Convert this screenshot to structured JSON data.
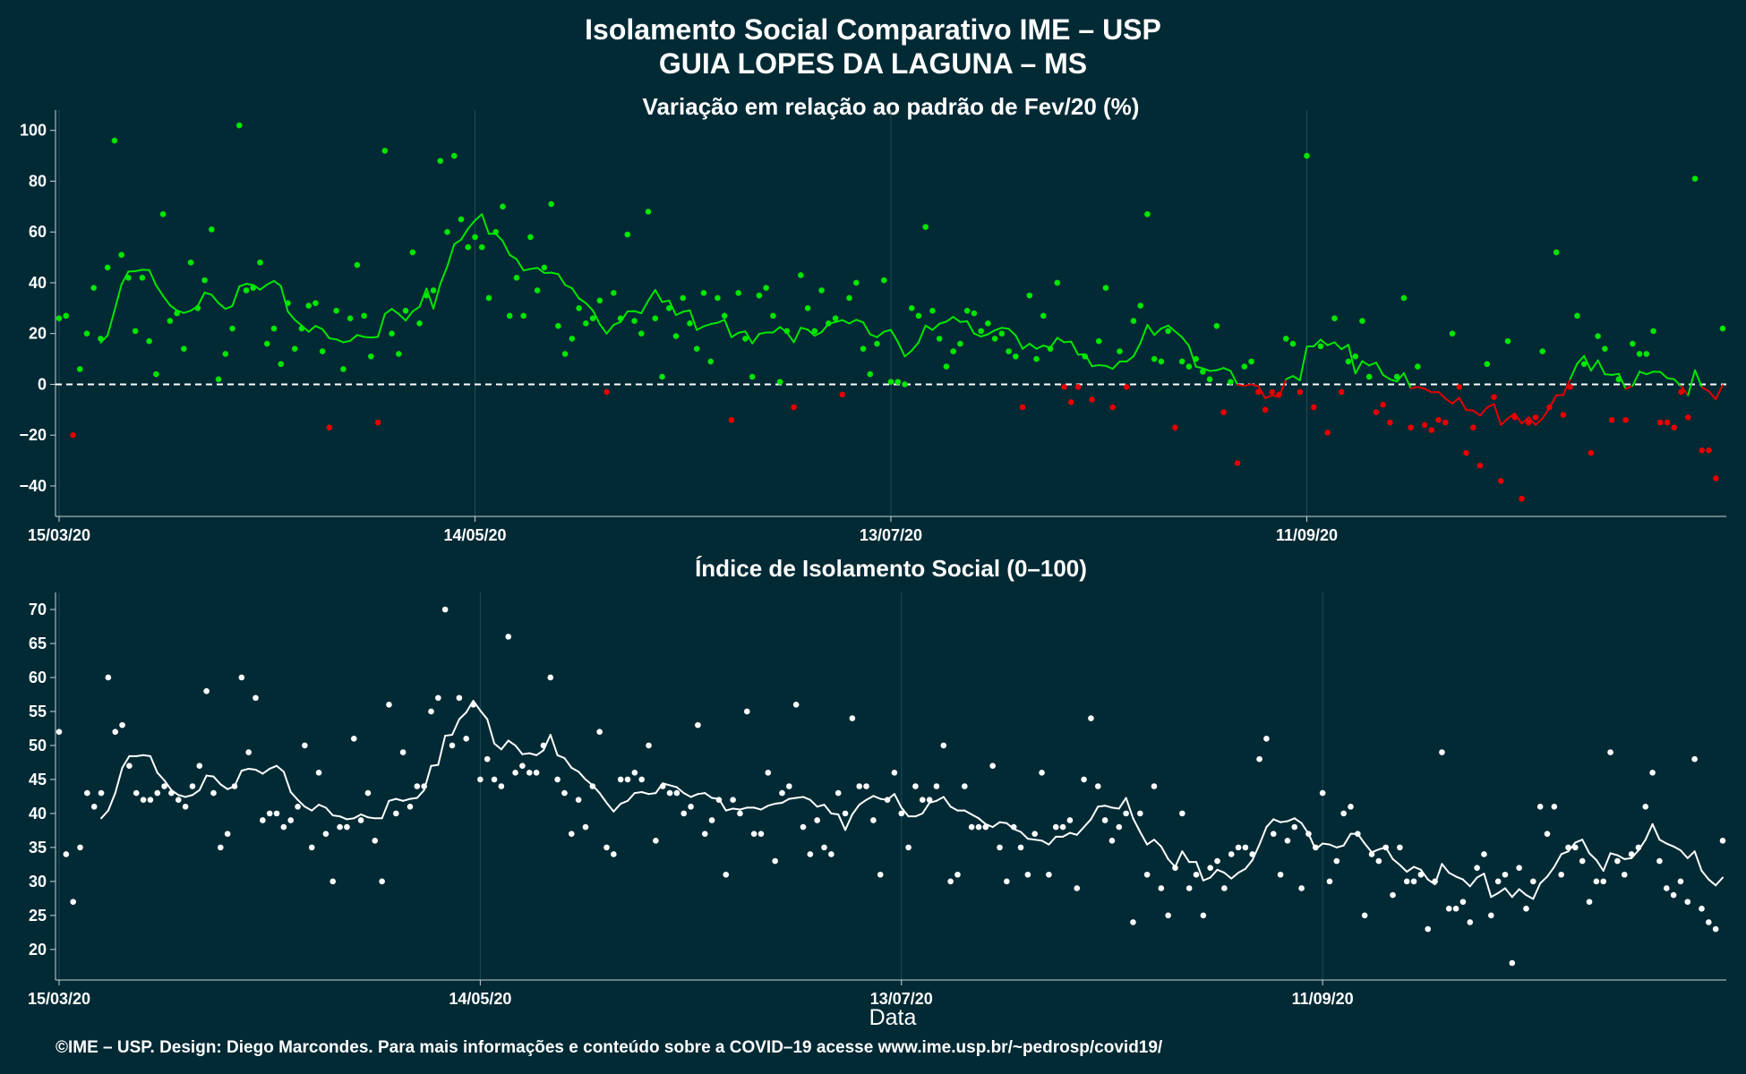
{
  "title_line1": "Isolamento Social Comparativo IME – USP",
  "title_line2": "GUIA LOPES DA LAGUNA – MS",
  "xlabel": "Data",
  "footer": "©IME – USP. Design: Diego Marcondes. Para mais informações e conteúdo sobre a COVID–19 acesse www.ime.usp.br/~pedrosp/covid19/",
  "colors": {
    "background": "#022a35",
    "positive": "#00e600",
    "negative": "#e60000",
    "index": "#ffffff",
    "grid": "#1d4a55"
  },
  "chart_data": [
    {
      "type": "scatter",
      "title": "Variação em relação ao padrão de Fev/20 (%)",
      "x_start": "15/03/20",
      "x_end": "29/10/20",
      "x_ticks": [
        "15/03/20",
        "14/05/20",
        "13/07/20",
        "11/09/20"
      ],
      "y_ticks": [
        "100",
        "80",
        "60",
        "40",
        "20",
        "0",
        "−20",
        "−40"
      ],
      "ylim": [
        -52,
        108
      ],
      "reference_line": 0,
      "moving_average": "7-day",
      "series": [
        {
          "values": [
            26,
            27,
            -20,
            6,
            20,
            38,
            18,
            46,
            96,
            51,
            42,
            21,
            42,
            17,
            4,
            67,
            25,
            28,
            14,
            48,
            30,
            41,
            61,
            2,
            12,
            22,
            102,
            37,
            38,
            48,
            16,
            22,
            8,
            32,
            14,
            22,
            31,
            32,
            13,
            -17,
            29,
            6,
            26,
            47,
            27,
            11,
            -15,
            92,
            20,
            12,
            29,
            52,
            24,
            35,
            37,
            88,
            60,
            90,
            65,
            54,
            58,
            54,
            34,
            60,
            70,
            27,
            42,
            27,
            58,
            37,
            46,
            71,
            23,
            12,
            18,
            30,
            24,
            26,
            33,
            -3,
            36,
            26,
            59,
            25,
            20,
            68,
            26,
            3,
            30,
            19,
            34,
            24,
            14,
            36,
            9,
            34,
            27,
            -14,
            36,
            18,
            3,
            35,
            38,
            27,
            1,
            21,
            -9,
            43,
            30,
            21,
            37,
            24,
            26,
            -4,
            34,
            40,
            14,
            4,
            16,
            41,
            1,
            1,
            0,
            30,
            27,
            62,
            29,
            18,
            7,
            13,
            16,
            29,
            28,
            21,
            24,
            18,
            20,
            13,
            11,
            -9,
            35,
            10,
            27,
            14,
            40,
            -1,
            -7,
            -1,
            11,
            -6,
            17,
            38,
            -9,
            13,
            -1,
            25,
            31,
            67,
            10,
            9,
            21,
            -17,
            9,
            7,
            10,
            5,
            2,
            23,
            -11,
            1,
            -31,
            7,
            9,
            -3,
            -10,
            -3,
            -4,
            18,
            16,
            -3,
            90,
            -9,
            15,
            -19,
            26,
            -3,
            9,
            11,
            25,
            3,
            -11,
            -8,
            -15,
            3,
            34,
            -17,
            7,
            -16,
            -18,
            -14,
            -15,
            20,
            -1,
            -27,
            -17,
            -32,
            8,
            -5,
            -38,
            17,
            -13,
            -45,
            -15,
            -13,
            13,
            -9,
            52,
            -12,
            -1,
            27,
            8,
            -27,
            19,
            14,
            -14,
            2,
            -14,
            16,
            12,
            12,
            21,
            -15,
            -15,
            -17,
            -3,
            -13,
            81,
            -26,
            -26,
            -37,
            22
          ]
        }
      ]
    },
    {
      "type": "scatter",
      "title": "Índice de Isolamento Social (0–100)",
      "x_start": "15/03/20",
      "x_end": "29/10/20",
      "x_ticks": [
        "15/03/20",
        "14/05/20",
        "13/07/20",
        "11/09/20"
      ],
      "y_ticks": [
        "70",
        "65",
        "60",
        "55",
        "50",
        "45",
        "40",
        "35",
        "30",
        "25",
        "20"
      ],
      "ylim": [
        15.5,
        72.5
      ],
      "moving_average": "7-day",
      "series": [
        {
          "values": [
            52,
            34,
            27,
            35,
            43,
            41,
            43,
            60,
            52,
            53,
            47,
            43,
            42,
            42,
            43,
            44,
            43,
            42,
            41,
            44,
            47,
            58,
            43,
            35,
            37,
            44,
            60,
            49,
            57,
            39,
            40,
            40,
            38,
            39,
            41,
            50,
            35,
            46,
            37,
            30,
            38,
            38,
            51,
            39,
            43,
            36,
            30,
            56,
            40,
            49,
            41,
            44,
            44,
            55,
            57,
            70,
            50,
            57,
            51,
            56,
            45,
            48,
            45,
            44,
            66,
            46,
            47,
            46,
            46,
            50,
            60,
            45,
            43,
            37,
            42,
            38,
            44,
            52,
            35,
            34,
            45,
            45,
            46,
            45,
            50,
            36,
            44,
            43,
            43,
            40,
            41,
            53,
            37,
            39,
            42,
            31,
            42,
            40,
            55,
            37,
            37,
            46,
            33,
            43,
            44,
            56,
            38,
            34,
            39,
            35,
            34,
            43,
            40,
            54,
            44,
            44,
            39,
            31,
            42,
            46,
            40,
            35,
            44,
            42,
            42,
            44,
            50,
            30,
            31,
            44,
            38,
            38,
            38,
            47,
            35,
            30,
            38,
            35,
            31,
            37,
            46,
            31,
            38,
            38,
            39,
            29,
            45,
            54,
            44,
            39,
            36,
            38,
            40,
            24,
            40,
            31,
            44,
            29,
            25,
            32,
            40,
            29,
            31,
            25,
            32,
            33,
            29,
            34,
            35,
            35,
            34,
            48,
            51,
            37,
            31,
            36,
            38,
            29,
            37,
            35,
            43,
            30,
            33,
            40,
            41,
            37,
            25,
            34,
            33,
            35,
            28,
            35,
            30,
            30,
            31,
            23,
            30,
            49,
            26,
            26,
            27,
            24,
            32,
            34,
            25,
            30,
            31,
            18,
            32,
            26,
            30,
            41,
            37,
            41,
            31,
            35,
            35,
            33,
            27,
            30,
            30,
            49,
            33,
            31,
            34,
            35,
            41,
            46,
            33,
            29,
            28,
            30,
            27,
            48,
            26,
            24,
            23,
            36
          ]
        }
      ]
    }
  ]
}
